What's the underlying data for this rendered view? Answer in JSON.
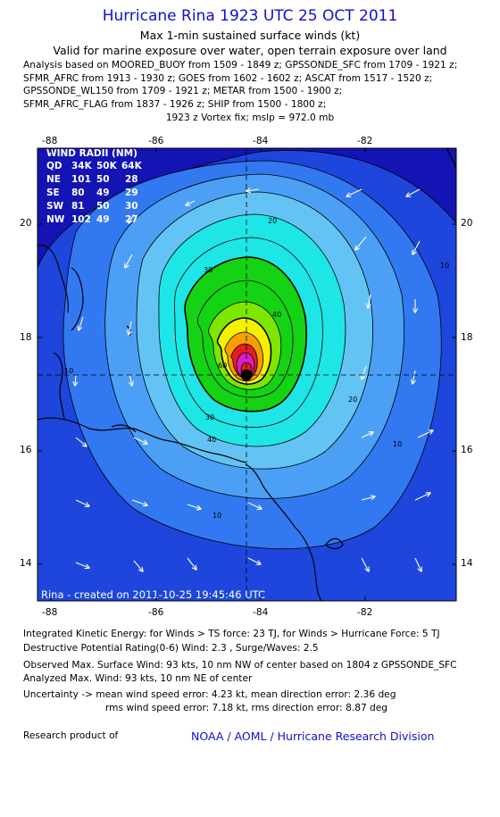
{
  "header": {
    "title": "Hurricane Rina 1923 UTC 25 OCT 2011",
    "subtitle1": "Max 1-min sustained surface winds (kt)",
    "subtitle2": "Valid for marine exposure over water, open terrain exposure over land",
    "analysis_lines": [
      "Analysis based on MOORED_BUOY from 1509 - 1849 z; GPSSONDE_SFC from 1709 - 1921 z;",
      "SFMR_AFRC from 1913 - 1930 z; GOES from 1602 - 1602 z; ASCAT from 1517 - 1520 z;",
      "GPSSONDE_WL150 from 1709 - 1921 z; METAR from 1500 - 1900 z;",
      "SFMR_AFRC_FLAG from 1837 - 1926 z; SHIP from 1500 - 1800 z;"
    ],
    "vortex": "1923 z Vortex fix; mslp = 972.0 mb"
  },
  "map": {
    "lon_labels": [
      "-88",
      "-86",
      "-84",
      "-82"
    ],
    "lat_labels": [
      "20",
      "18",
      "16",
      "14"
    ],
    "wind_radii": {
      "title": "WIND RADII (NM)",
      "columns": [
        "QD",
        "34K",
        "50K",
        "64K"
      ],
      "rows": [
        [
          "NE",
          "101",
          "50",
          "28"
        ],
        [
          "SE",
          "80",
          "49",
          "29"
        ],
        [
          "SW",
          "81",
          "50",
          "30"
        ],
        [
          "NW",
          "102",
          "49",
          "27"
        ]
      ]
    },
    "created": "Rina - created on 2011-10-25 19:45:46 UTC",
    "contour_labels": [
      "10",
      "20",
      "30",
      "40",
      "20",
      "10",
      "10",
      "30",
      "40",
      "60",
      "10"
    ],
    "colors": {
      "ocean_deep": "#1414b4",
      "outer_blue": "#1e46dc",
      "mid_blue": "#3278f0",
      "light_blue": "#4ba0f5",
      "sky_blue": "#64c3f5",
      "cyan": "#1ee6e6",
      "green": "#14d214",
      "light_green": "#7ee600",
      "yellow": "#f5f000",
      "orange": "#f5a000",
      "red": "#e61e1e",
      "magenta": "#dc1ec8",
      "center": "#000000"
    }
  },
  "footer": {
    "ike": "Integrated Kinetic Energy:  for Winds > TS force: 23 TJ,  for Winds > Hurricane Force: 5 TJ",
    "dpr": "Destructive Potential Rating(0-6)   Wind: 2.3 , Surge/Waves: 2.5",
    "observed": "Observed Max. Surface Wind: 93 kts, 10 nm NW of center based on 1804 z GPSSONDE_SFC",
    "analyzed": "Analyzed Max. Wind: 93 kts, 10 nm NE of center",
    "uncertainty1": "Uncertainty -> mean wind speed error: 4.23 kt,   mean direction error: 2.36 deg",
    "uncertainty2": "rms wind speed error: 7.18 kt,   rms direction error: 8.87 deg",
    "research": "Research product of",
    "credit": "NOAA / AOML / Hurricane Research Division"
  }
}
